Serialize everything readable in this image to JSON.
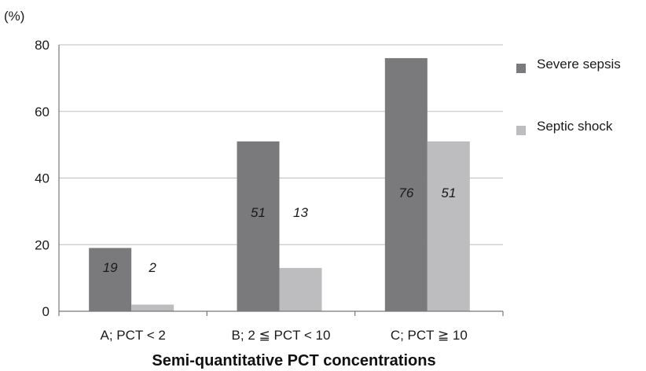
{
  "chart_data": {
    "type": "bar",
    "unit_label": "(%)",
    "xlabel": "Semi-quantitative PCT concentrations",
    "ylabel": "",
    "ylim": [
      0,
      80
    ],
    "yticks": [
      0,
      20,
      40,
      60,
      80
    ],
    "grid": true,
    "legend_position": "right",
    "categories": [
      "A; PCT < 2",
      "B; 2 ≦ PCT < 10",
      "C; PCT ≧ 10"
    ],
    "series": [
      {
        "name": "Severe sepsis",
        "values": [
          19,
          51,
          76
        ],
        "color": "#7a7a7c"
      },
      {
        "name": "Septic shock",
        "values": [
          2,
          13,
          51
        ],
        "color": "#bdbdbf"
      }
    ]
  }
}
